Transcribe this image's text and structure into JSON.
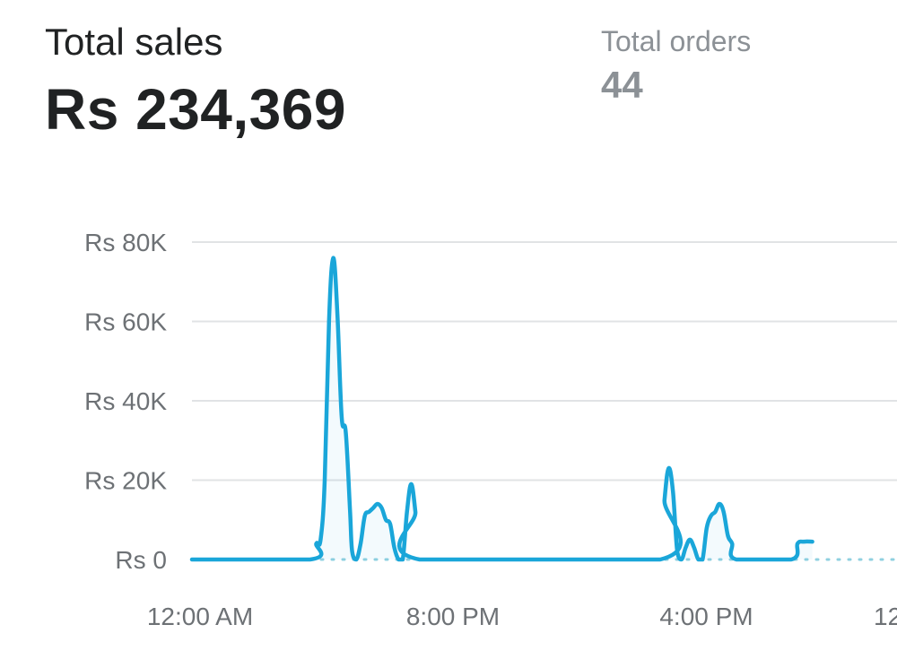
{
  "metrics": {
    "total_sales_label": "Total sales",
    "total_sales_value": "Rs 234,369",
    "total_orders_label": "Total orders",
    "total_orders_value": "44"
  },
  "colors": {
    "primary_line": "#1aa6d9",
    "comparison_line": "#8fd0e0",
    "grid": "#e1e3e5",
    "tick_text": "#6d7175"
  },
  "chart_data": {
    "type": "line",
    "title": "",
    "xlabel": "",
    "ylabel": "",
    "ylim": [
      0,
      80000
    ],
    "y_ticks": [
      {
        "value": 0,
        "label": "Rs 0"
      },
      {
        "value": 20000,
        "label": "Rs 20K"
      },
      {
        "value": 40000,
        "label": "Rs 40K"
      },
      {
        "value": 60000,
        "label": "Rs 60K"
      },
      {
        "value": 80000,
        "label": "Rs 80K"
      }
    ],
    "xlim": [
      0,
      36
    ],
    "x_ticks": [
      {
        "value": 0,
        "label": "12:00 AM"
      },
      {
        "value": 12,
        "label": "8:00 PM"
      },
      {
        "value": 24,
        "label": "4:00 PM"
      },
      {
        "value": 36,
        "label": "12"
      }
    ],
    "grid": true,
    "legend": "none",
    "series": [
      {
        "points": [
          [
            0,
            0
          ],
          [
            5.6,
            0
          ],
          [
            5.9,
            4000
          ],
          [
            6.1,
            5000
          ],
          [
            6.3,
            20000
          ],
          [
            6.5,
            60000
          ],
          [
            6.7,
            76000
          ],
          [
            6.9,
            62000
          ],
          [
            7.1,
            36000
          ],
          [
            7.3,
            32000
          ],
          [
            7.5,
            12000
          ],
          [
            7.6,
            2000
          ],
          [
            7.8,
            0
          ],
          [
            8.0,
            4000
          ],
          [
            8.2,
            11000
          ],
          [
            8.4,
            12000
          ],
          [
            8.6,
            13000
          ],
          [
            8.8,
            14000
          ],
          [
            9.0,
            13000
          ],
          [
            9.2,
            10000
          ],
          [
            9.4,
            9000
          ],
          [
            9.6,
            3000
          ],
          [
            9.8,
            0
          ],
          [
            10.0,
            0
          ],
          [
            10.2,
            12000
          ],
          [
            10.4,
            19000
          ],
          [
            10.6,
            12000
          ],
          [
            10.8,
            0
          ],
          [
            22.2,
            0
          ],
          [
            22.4,
            15000
          ],
          [
            22.6,
            23000
          ],
          [
            22.8,
            17000
          ],
          [
            23.0,
            2000
          ],
          [
            23.2,
            0
          ],
          [
            23.4,
            3000
          ],
          [
            23.6,
            5000
          ],
          [
            23.8,
            3000
          ],
          [
            24.0,
            0
          ],
          [
            24.2,
            0
          ],
          [
            24.4,
            8000
          ],
          [
            24.6,
            11000
          ],
          [
            24.8,
            12000
          ],
          [
            25.0,
            14000
          ],
          [
            25.2,
            12000
          ],
          [
            25.4,
            6000
          ],
          [
            25.6,
            4000
          ],
          [
            25.8,
            0
          ],
          [
            28.4,
            0
          ],
          [
            28.7,
            4000
          ],
          [
            29.0,
            4500
          ],
          [
            29.4,
            4500
          ]
        ]
      },
      {
        "dashed": true,
        "points": [
          [
            0,
            0
          ],
          [
            36,
            0
          ]
        ]
      }
    ]
  }
}
